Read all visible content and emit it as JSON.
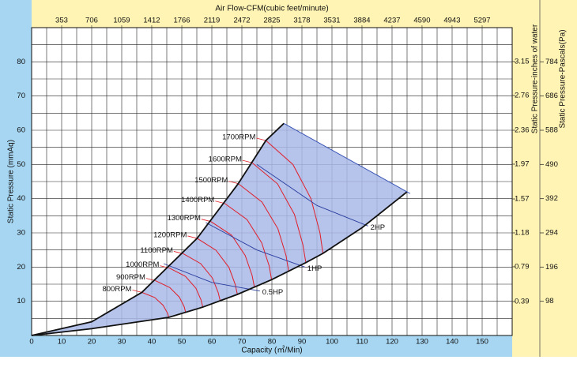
{
  "chart_data": {
    "type": "line",
    "x_label": "Capacity (㎥/Min)",
    "y_label": "Static Pressure (mmAq)",
    "x2_label": "Air Flow-CFM(cubic feet/minute)",
    "y2_label": "Static Pressure-inches of water",
    "y3_label": "Static Pressure-Pascals(Pa)",
    "xlim": [
      0,
      160
    ],
    "xticks": [
      0,
      10,
      20,
      30,
      40,
      50,
      60,
      70,
      80,
      90,
      100,
      110,
      120,
      130,
      140,
      150
    ],
    "ylim": [
      0,
      90
    ],
    "yticks": [
      10,
      20,
      30,
      40,
      50,
      60,
      70,
      80
    ],
    "x2lim": [
      0,
      5650
    ],
    "x2ticks": [
      353,
      706,
      1059,
      1412,
      1766,
      2119,
      2472,
      2825,
      3178,
      3531,
      3884,
      4237,
      4590,
      4943,
      5297
    ],
    "y2lim": [
      0,
      3.54
    ],
    "y2ticks": [
      0.39,
      0.79,
      1.18,
      1.57,
      1.97,
      2.36,
      2.76,
      3.15
    ],
    "y3lim": [
      0,
      882
    ],
    "y3ticks": [
      98,
      196,
      294,
      392,
      490,
      588,
      686,
      784
    ],
    "xgrid": [
      0,
      5,
      10,
      15,
      20,
      25,
      30,
      35,
      40,
      45,
      50,
      55,
      60,
      65,
      70,
      75,
      80,
      85,
      90,
      95,
      100,
      105,
      110,
      115,
      120,
      125,
      130,
      135,
      140,
      145,
      150,
      155,
      160
    ],
    "ygrid": [
      0,
      5,
      10,
      15,
      20,
      25,
      30,
      35,
      40,
      45,
      50,
      55,
      60,
      65,
      70,
      75,
      80,
      85,
      90
    ],
    "envelope": {
      "color": "#111111",
      "fill": "#a9b9e8",
      "upper": {
        "x": [
          0,
          20,
          36.7,
          55.1,
          68.8,
          78,
          84
        ],
        "y": [
          0,
          4,
          12.6,
          28.4,
          44.4,
          57,
          62
        ]
      },
      "lower": {
        "x": [
          0,
          20,
          45.7,
          57,
          68.5,
          79.9,
          91.3,
          97,
          110,
          125
        ],
        "y": [
          0,
          2,
          5.3,
          8.3,
          12,
          16.3,
          21.3,
          24,
          31.5,
          42
        ]
      },
      "top_edge": {
        "x": [
          84,
          126
        ],
        "y": [
          62,
          41.5
        ],
        "color": "#3a55b5"
      }
    },
    "series": [
      {
        "name": "800RPM",
        "color": "#e0202a",
        "x": [
          36.7,
          41.0,
          43.8,
          45.2,
          45.7
        ],
        "y": [
          12.6,
          11.1,
          8.8,
          6.6,
          5.3
        ]
      },
      {
        "name": "900RPM",
        "color": "#e0202a",
        "x": [
          41.3,
          46.0,
          49.2,
          50.8,
          51.3
        ],
        "y": [
          16.0,
          14.0,
          11.2,
          8.4,
          6.7
        ]
      },
      {
        "name": "1000RPM",
        "color": "#e0202a",
        "x": [
          45.9,
          51.2,
          54.7,
          56.4,
          57.0
        ],
        "y": [
          19.7,
          17.3,
          13.8,
          10.4,
          8.3
        ]
      },
      {
        "name": "1100RPM",
        "color": "#e0202a",
        "x": [
          50.5,
          56.3,
          60.2,
          62.1,
          62.8
        ],
        "y": [
          23.9,
          21.0,
          16.8,
          12.6,
          10.1
        ]
      },
      {
        "name": "1200RPM",
        "color": "#e0202a",
        "x": [
          55.1,
          61.4,
          65.7,
          67.8,
          68.5
        ],
        "y": [
          28.4,
          24.9,
          19.9,
          14.9,
          12.0
        ]
      },
      {
        "name": "1300RPM",
        "color": "#e0202a",
        "x": [
          59.7,
          66.6,
          71.1,
          73.4,
          74.2
        ],
        "y": [
          33.3,
          29.3,
          23.4,
          17.6,
          14.0
        ]
      },
      {
        "name": "1400RPM",
        "color": "#e0202a",
        "x": [
          64.3,
          71.7,
          76.6,
          79.1,
          79.9
        ],
        "y": [
          38.6,
          33.9,
          27.1,
          20.3,
          16.3
        ]
      },
      {
        "name": "1500RPM",
        "color": "#e0202a",
        "x": [
          68.8,
          76.7,
          82.0,
          84.7,
          85.6
        ],
        "y": [
          44.4,
          39.0,
          31.2,
          23.4,
          18.7
        ]
      },
      {
        "name": "1600RPM",
        "color": "#e0202a",
        "x": [
          73.4,
          81.9,
          87.5,
          90.3,
          91.3
        ],
        "y": [
          50.5,
          44.3,
          35.4,
          26.6,
          21.3
        ]
      },
      {
        "name": "1700RPM",
        "color": "#e0202a",
        "x": [
          78,
          87,
          93,
          96,
          97
        ],
        "y": [
          57,
          50,
          40,
          30,
          24
        ]
      }
    ],
    "hp_lines": [
      {
        "name": "0.5HP",
        "color": "#2a3fa0",
        "x": [
          44,
          60,
          76
        ],
        "y": [
          21,
          15.5,
          13
        ]
      },
      {
        "name": "1HP",
        "color": "#2a3fa0",
        "x": [
          58,
          75,
          91
        ],
        "y": [
          33,
          25,
          20
        ]
      },
      {
        "name": "2HP",
        "color": "#2a3fa0",
        "x": [
          75,
          95,
          112
        ],
        "y": [
          50,
          38,
          32
        ]
      }
    ]
  }
}
